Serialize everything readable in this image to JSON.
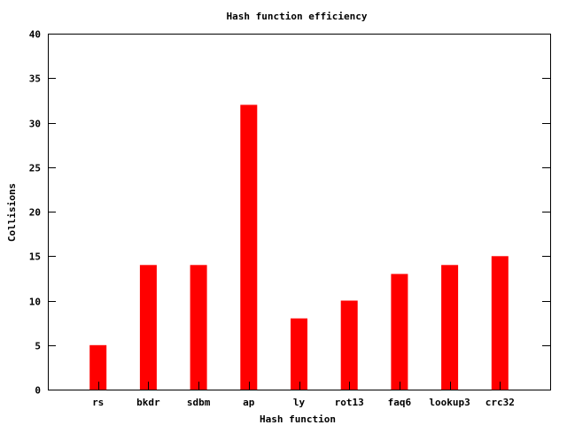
{
  "chart_data": {
    "type": "bar",
    "title": "Hash function efficiency",
    "xlabel": "Hash function",
    "ylabel": "Collisions",
    "categories": [
      "rs",
      "bkdr",
      "sdbm",
      "ap",
      "ly",
      "rot13",
      "faq6",
      "lookup3",
      "crc32"
    ],
    "values": [
      5,
      14,
      14,
      32,
      8,
      10,
      13,
      14,
      15
    ],
    "ylim": [
      0,
      40
    ],
    "yticks": [
      0,
      5,
      10,
      15,
      20,
      25,
      30,
      35,
      40
    ],
    "grid": false,
    "legend": "none",
    "bar_color": "#ff0000"
  }
}
